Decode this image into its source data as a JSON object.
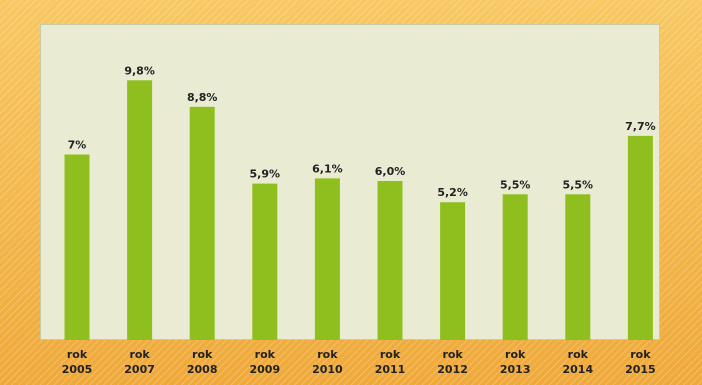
{
  "chart_data": {
    "type": "bar",
    "title": "",
    "xlabel": "",
    "ylabel": "",
    "ylim": [
      0,
      10.5
    ],
    "grid": false,
    "bar_color": "#8fbf1f",
    "categories": [
      [
        "rok",
        "2005"
      ],
      [
        "rok",
        "2007"
      ],
      [
        "rok",
        "2008"
      ],
      [
        "rok",
        "2009"
      ],
      [
        "rok",
        "2010"
      ],
      [
        "rok",
        "2011"
      ],
      [
        "rok",
        "2012"
      ],
      [
        "rok",
        "2013"
      ],
      [
        "rok",
        "2014"
      ],
      [
        "rok",
        "2015"
      ]
    ],
    "values": [
      7.0,
      9.8,
      8.8,
      5.9,
      6.1,
      6.0,
      5.2,
      5.5,
      5.5,
      7.7
    ],
    "data_labels": [
      "7%",
      "9,8%",
      "8,8%",
      "5,9%",
      "6,1%",
      "6,0%",
      "5,2%",
      "5,5%",
      "5,5%",
      "7,7%"
    ]
  }
}
